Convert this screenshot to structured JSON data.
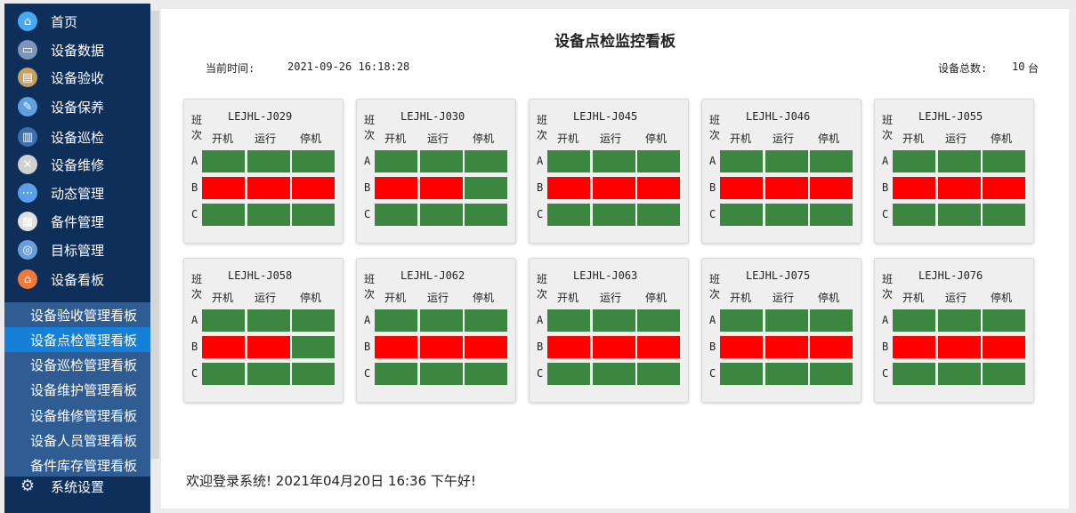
{
  "sidebar": {
    "items": [
      {
        "label": "首页",
        "icon": "home-icon",
        "glyph": "⌂",
        "bg": "#4aa8f0"
      },
      {
        "label": "设备数据",
        "icon": "monitor-icon",
        "glyph": "▭",
        "bg": "#7d96b8"
      },
      {
        "label": "设备验收",
        "icon": "clipboard-icon",
        "glyph": "▤",
        "bg": "#c8a060"
      },
      {
        "label": "设备保养",
        "icon": "wrench-spray-icon",
        "glyph": "✎",
        "bg": "#5fa0e0"
      },
      {
        "label": "设备巡检",
        "icon": "checklist-icon",
        "glyph": "▥",
        "bg": "#3c6fb0"
      },
      {
        "label": "设备维修",
        "icon": "tools-icon",
        "glyph": "✕",
        "bg": "#d0d0d0"
      },
      {
        "label": "动态管理",
        "icon": "share-icon",
        "glyph": "⋯",
        "bg": "#5aa0e8"
      },
      {
        "label": "备件管理",
        "icon": "film-icon",
        "glyph": "▦",
        "bg": "#e0e0e0"
      },
      {
        "label": "目标管理",
        "icon": "target-icon",
        "glyph": "◎",
        "bg": "#6a9ed8"
      },
      {
        "label": "设备看板",
        "icon": "dashboard-icon",
        "glyph": "⌂",
        "bg": "#f07a3c"
      }
    ],
    "submenu": [
      {
        "label": "设备验收管理看板",
        "active": false
      },
      {
        "label": "设备点检管理看板",
        "active": true
      },
      {
        "label": "设备巡检管理看板",
        "active": false
      },
      {
        "label": "设备维护管理看板",
        "active": false
      },
      {
        "label": "设备维修管理看板",
        "active": false
      },
      {
        "label": "设备人员管理看板",
        "active": false
      },
      {
        "label": "备件库存管理看板",
        "active": false
      }
    ],
    "settings": {
      "label": "系统设置",
      "icon": "gear-icon",
      "glyph": "⚙"
    }
  },
  "header": {
    "title": "设备点检监控看板",
    "time_label": "当前时间:",
    "time_value": "2021-09-26 16:18:28",
    "total_label": "设备总数:",
    "total_value": "10",
    "total_unit": "台"
  },
  "card_labels": {
    "shift_label_1": "班",
    "shift_label_2": "次",
    "columns": [
      "开机",
      "运行",
      "停机"
    ]
  },
  "status_colors": {
    "green": "#3b8640",
    "red": "#fe0000"
  },
  "devices": [
    {
      "id": "LEJHL-J029",
      "rows": [
        {
          "shift": "A",
          "status": [
            "green",
            "green",
            "green"
          ]
        },
        {
          "shift": "B",
          "status": [
            "red",
            "red",
            "red"
          ]
        },
        {
          "shift": "C",
          "status": [
            "green",
            "green",
            "green"
          ]
        }
      ]
    },
    {
      "id": "LEJHL-J030",
      "rows": [
        {
          "shift": "A",
          "status": [
            "green",
            "green",
            "green"
          ]
        },
        {
          "shift": "B",
          "status": [
            "red",
            "red",
            "green"
          ]
        },
        {
          "shift": "C",
          "status": [
            "green",
            "green",
            "green"
          ]
        }
      ]
    },
    {
      "id": "LEJHL-J045",
      "rows": [
        {
          "shift": "A",
          "status": [
            "green",
            "green",
            "green"
          ]
        },
        {
          "shift": "B",
          "status": [
            "red",
            "red",
            "red"
          ]
        },
        {
          "shift": "C",
          "status": [
            "green",
            "green",
            "green"
          ]
        }
      ]
    },
    {
      "id": "LEJHL-J046",
      "rows": [
        {
          "shift": "A",
          "status": [
            "green",
            "green",
            "green"
          ]
        },
        {
          "shift": "B",
          "status": [
            "red",
            "red",
            "red"
          ]
        },
        {
          "shift": "C",
          "status": [
            "green",
            "green",
            "green"
          ]
        }
      ]
    },
    {
      "id": "LEJHL-J055",
      "rows": [
        {
          "shift": "A",
          "status": [
            "green",
            "green",
            "green"
          ]
        },
        {
          "shift": "B",
          "status": [
            "red",
            "red",
            "red"
          ]
        },
        {
          "shift": "C",
          "status": [
            "green",
            "green",
            "green"
          ]
        }
      ]
    },
    {
      "id": "LEJHL-J058",
      "rows": [
        {
          "shift": "A",
          "status": [
            "green",
            "green",
            "green"
          ]
        },
        {
          "shift": "B",
          "status": [
            "red",
            "red",
            "green"
          ]
        },
        {
          "shift": "C",
          "status": [
            "green",
            "green",
            "green"
          ]
        }
      ]
    },
    {
      "id": "LEJHL-J062",
      "rows": [
        {
          "shift": "A",
          "status": [
            "green",
            "green",
            "green"
          ]
        },
        {
          "shift": "B",
          "status": [
            "red",
            "red",
            "red"
          ]
        },
        {
          "shift": "C",
          "status": [
            "green",
            "green",
            "green"
          ]
        }
      ]
    },
    {
      "id": "LEJHL-J063",
      "rows": [
        {
          "shift": "A",
          "status": [
            "green",
            "green",
            "green"
          ]
        },
        {
          "shift": "B",
          "status": [
            "red",
            "red",
            "red"
          ]
        },
        {
          "shift": "C",
          "status": [
            "green",
            "green",
            "green"
          ]
        }
      ]
    },
    {
      "id": "LEJHL-J075",
      "rows": [
        {
          "shift": "A",
          "status": [
            "green",
            "green",
            "green"
          ]
        },
        {
          "shift": "B",
          "status": [
            "red",
            "red",
            "red"
          ]
        },
        {
          "shift": "C",
          "status": [
            "green",
            "green",
            "green"
          ]
        }
      ]
    },
    {
      "id": "LEJHL-J076",
      "rows": [
        {
          "shift": "A",
          "status": [
            "green",
            "green",
            "green"
          ]
        },
        {
          "shift": "B",
          "status": [
            "red",
            "red",
            "red"
          ]
        },
        {
          "shift": "C",
          "status": [
            "green",
            "green",
            "green"
          ]
        }
      ]
    }
  ],
  "footer": {
    "text": "欢迎登录系统!   2021年04月20日 16:36 下午好!"
  }
}
